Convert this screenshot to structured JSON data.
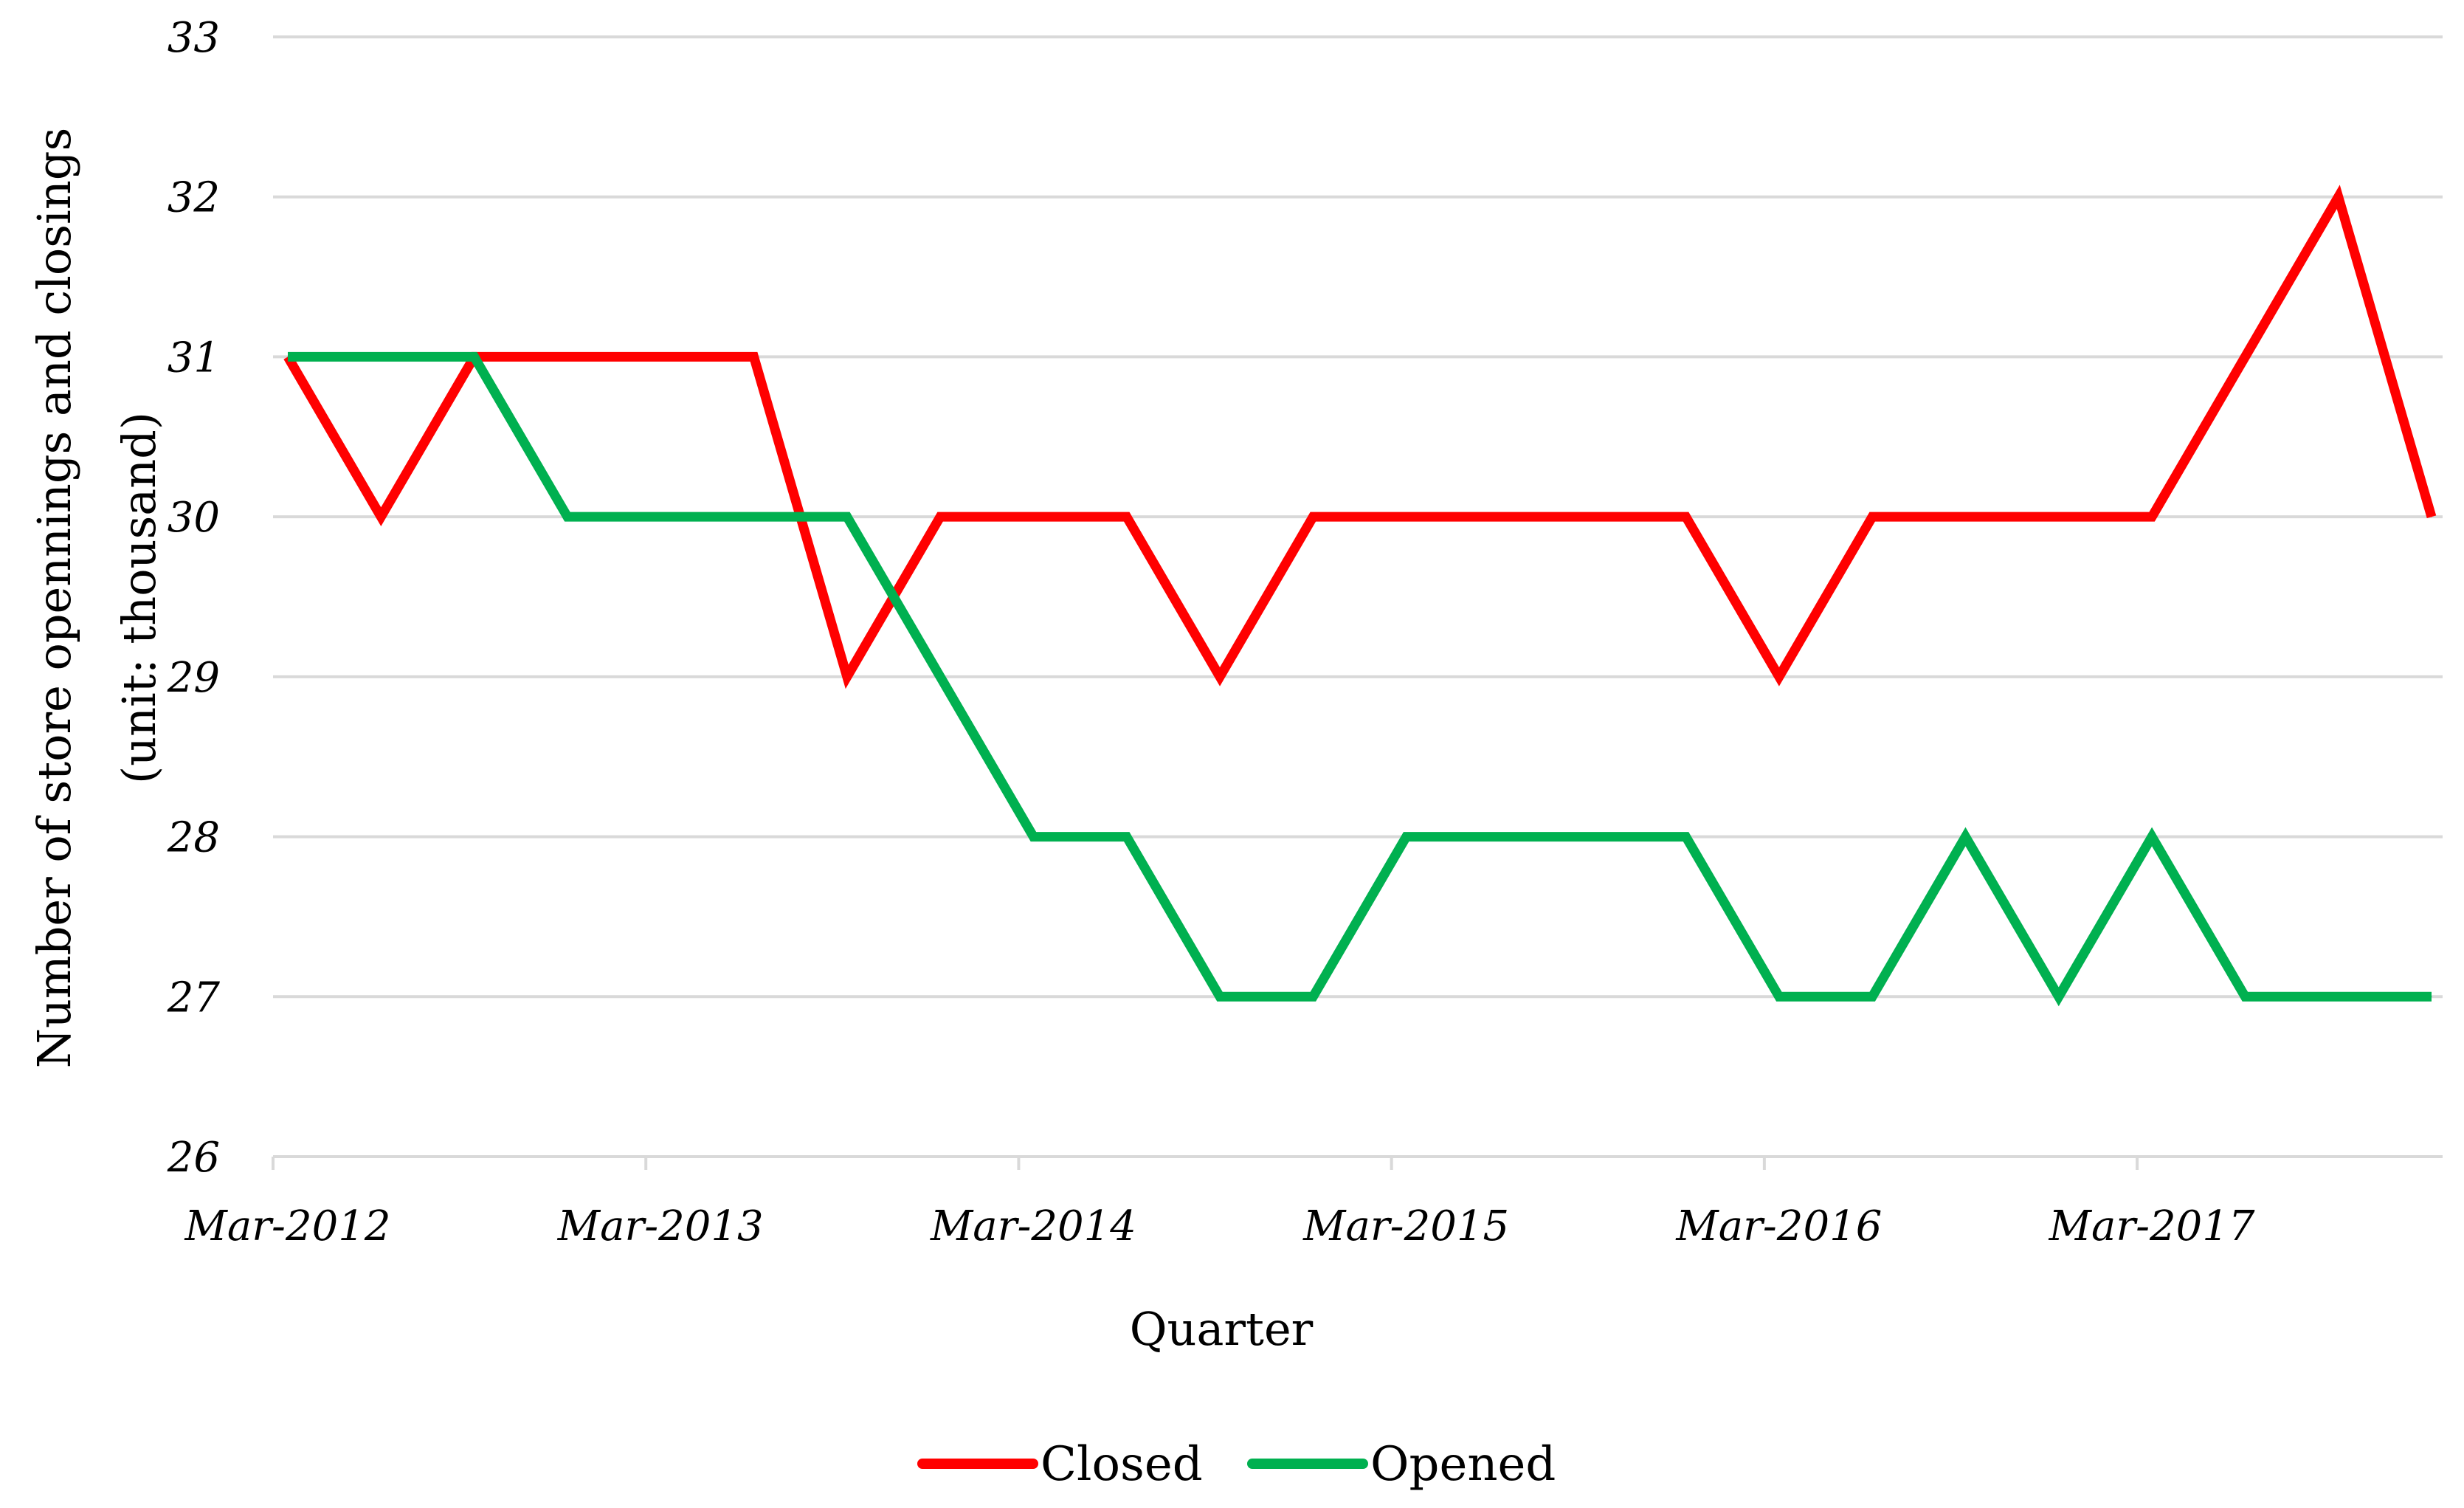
{
  "chart_data": {
    "type": "line",
    "xlabel": "Quarter",
    "ylabel": "Number of store opennings and closings",
    "ylabel_unit": "(unit: thousand)",
    "ylim": [
      26,
      33
    ],
    "yticks": [
      "26",
      "27",
      "28",
      "29",
      "30",
      "31",
      "32",
      "33"
    ],
    "grid": true,
    "legend_position": "bottom",
    "x": [
      "Mar-2012",
      "Jun-2012",
      "Sep-2012",
      "Dec-2012",
      "Mar-2013",
      "Jun-2013",
      "Sep-2013",
      "Dec-2013",
      "Mar-2014",
      "Jun-2014",
      "Sep-2014",
      "Dec-2014",
      "Mar-2015",
      "Jun-2015",
      "Sep-2015",
      "Dec-2015",
      "Mar-2016",
      "Jun-2016",
      "Sep-2016",
      "Dec-2016",
      "Mar-2017",
      "Jun-2017",
      "Sep-2017",
      "Dec-2017"
    ],
    "x_tick_labels": [
      "Mar-2012",
      "Mar-2013",
      "Mar-2014",
      "Mar-2015",
      "Mar-2016",
      "Mar-2017"
    ],
    "series": [
      {
        "name": "Closed",
        "color": "#ff0000",
        "values": [
          31,
          30,
          31,
          31,
          31,
          31,
          29,
          30,
          30,
          30,
          29,
          30,
          30,
          30,
          30,
          30,
          29,
          30,
          30,
          30,
          30,
          31,
          32,
          30
        ]
      },
      {
        "name": "Opened",
        "color": "#00b050",
        "values": [
          31,
          31,
          31,
          30,
          30,
          30,
          30,
          29,
          28,
          28,
          27,
          27,
          28,
          28,
          28,
          28,
          27,
          27,
          28,
          27,
          28,
          27,
          27,
          27
        ]
      }
    ]
  }
}
